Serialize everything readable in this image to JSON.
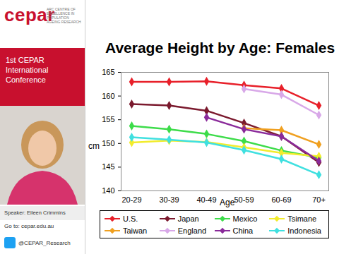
{
  "chart_data": {
    "type": "line",
    "title": "Average Height by Age: Females",
    "x_label": "Age",
    "y_label": "cm",
    "categories": [
      "20-29",
      "30-39",
      "40-49",
      "50-59",
      "60-69",
      "70+"
    ],
    "series": [
      {
        "name": "U.S.",
        "color": "#e8202a",
        "values": [
          163,
          163,
          163.1,
          162.3,
          161.6,
          158
        ]
      },
      {
        "name": "Japan",
        "color": "#7b1a2e",
        "values": [
          158.3,
          158,
          156.9,
          154.3,
          151.5,
          146
        ]
      },
      {
        "name": "Mexico",
        "color": "#3ddc4a",
        "values": [
          153.7,
          153,
          152,
          150.5,
          148.5,
          147
        ]
      },
      {
        "name": "Tsimane",
        "color": "#f2ec2c",
        "values": [
          150.2,
          150.6,
          150.3,
          149.2,
          148,
          147.3
        ]
      },
      {
        "name": "Taiwan",
        "color": "#f0a020",
        "values": [
          null,
          null,
          null,
          153.2,
          152.8,
          149.8
        ]
      },
      {
        "name": "England",
        "color": "#d8a8e8",
        "values": [
          null,
          null,
          null,
          161.5,
          160.3,
          156
        ]
      },
      {
        "name": "China",
        "color": "#8a2a9a",
        "values": [
          null,
          null,
          155.5,
          153,
          151.5,
          146.3
        ]
      },
      {
        "name": "Indonesia",
        "color": "#40e0e0",
        "values": [
          151.3,
          150.8,
          150.2,
          148.6,
          146.7,
          143.4
        ]
      }
    ],
    "marker": "diamond",
    "ylim": [
      140,
      165
    ],
    "yticks": [
      140,
      145,
      150,
      155,
      160,
      165
    ],
    "grid": false,
    "legend": "bottom"
  },
  "sidebar": {
    "logo": "cepar",
    "logo_subtitle": "ARC Centre of Excellence in Population Ageing Research",
    "conference": "1st CEPAR International Conference",
    "speaker": "Speaker: Eileen Crimmins",
    "go_to": "Go to: cepar.edu.au",
    "twitter": "@CEPAR_Research"
  }
}
